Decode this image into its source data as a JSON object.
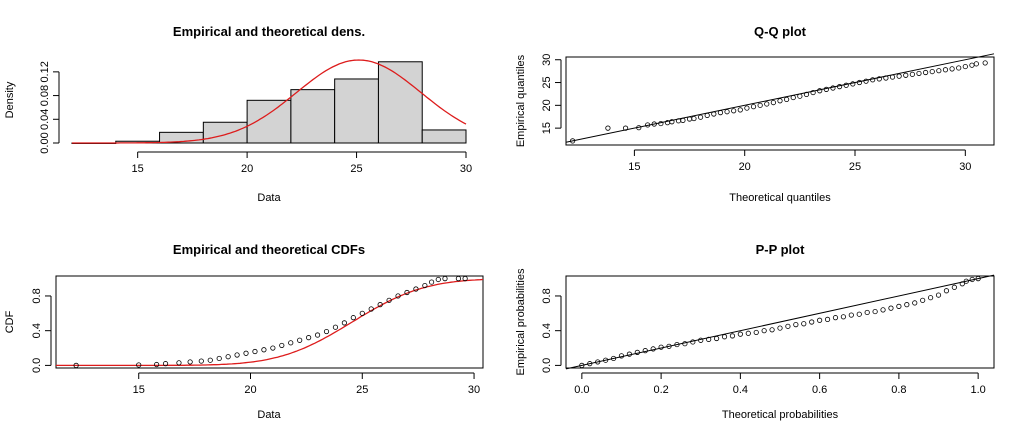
{
  "colors": {
    "bar_fill": "#d3d3d3",
    "bar_stroke": "#000000",
    "curve": "#dd1c1c",
    "axis": "#000000",
    "background": "#ffffff"
  },
  "chart_data": [
    {
      "id": "density",
      "type": "histogram",
      "title": "Empirical and theoretical dens.",
      "xlabel": "Data",
      "ylabel": "Density",
      "xlim": [
        12,
        30
      ],
      "ylim": [
        0,
        0.14
      ],
      "xticks": [
        15,
        20,
        25,
        30
      ],
      "yticks": [
        0.0,
        0.04,
        0.08,
        0.12
      ],
      "ytick_labels": [
        "0.00",
        "0.04",
        "0.08",
        "0.12"
      ],
      "bins": [
        {
          "from": 12,
          "to": 14,
          "density": 0.0
        },
        {
          "from": 14,
          "to": 16,
          "density": 0.003
        },
        {
          "from": 16,
          "to": 18,
          "density": 0.018
        },
        {
          "from": 18,
          "to": 20,
          "density": 0.035
        },
        {
          "from": 20,
          "to": 22,
          "density": 0.072
        },
        {
          "from": 22,
          "to": 24,
          "density": 0.09
        },
        {
          "from": 24,
          "to": 26,
          "density": 0.108
        },
        {
          "from": 26,
          "to": 28,
          "density": 0.137
        },
        {
          "from": 28,
          "to": 30,
          "density": 0.022
        }
      ],
      "theoretical": {
        "distribution": "normal",
        "mean": 25.1,
        "sd": 2.85,
        "peak_density": 0.14
      }
    },
    {
      "id": "qq",
      "type": "scatter",
      "title": "Q-Q plot",
      "xlabel": "Theoretical quantiles",
      "ylabel": "Empirical quantiles",
      "xlim": [
        11.9,
        31.3
      ],
      "ylim": [
        11.3,
        30.6
      ],
      "xticks": [
        15,
        20,
        25,
        30
      ],
      "yticks": [
        15,
        20,
        25,
        30
      ],
      "reference_line": [
        [
          11.9,
          11.9
        ],
        [
          31.3,
          31.3
        ]
      ],
      "points": [
        [
          12.2,
          12.2
        ],
        [
          13.8,
          15
        ],
        [
          14.6,
          15
        ],
        [
          15.2,
          15.1
        ],
        [
          15.6,
          15.7
        ],
        [
          15.9,
          15.9
        ],
        [
          16.2,
          16
        ],
        [
          16.5,
          16.2
        ],
        [
          16.7,
          16.4
        ],
        [
          17,
          16.6
        ],
        [
          17.2,
          16.7
        ],
        [
          17.5,
          17
        ],
        [
          17.7,
          17.1
        ],
        [
          18,
          17.4
        ],
        [
          18.3,
          17.8
        ],
        [
          18.6,
          18.1
        ],
        [
          18.9,
          18.4
        ],
        [
          19.2,
          18.6
        ],
        [
          19.5,
          18.8
        ],
        [
          19.8,
          19
        ],
        [
          20.1,
          19.4
        ],
        [
          20.4,
          19.7
        ],
        [
          20.7,
          20
        ],
        [
          21,
          20.3
        ],
        [
          21.3,
          20.6
        ],
        [
          21.6,
          21
        ],
        [
          21.9,
          21.3
        ],
        [
          22.2,
          21.7
        ],
        [
          22.5,
          22
        ],
        [
          22.8,
          22.4
        ],
        [
          23.1,
          22.8
        ],
        [
          23.4,
          23.2
        ],
        [
          23.7,
          23.5
        ],
        [
          24,
          23.8
        ],
        [
          24.3,
          24.1
        ],
        [
          24.6,
          24.4
        ],
        [
          24.9,
          24.7
        ],
        [
          25.2,
          25
        ],
        [
          25.5,
          25.3
        ],
        [
          25.8,
          25.6
        ],
        [
          26.1,
          25.8
        ],
        [
          26.4,
          26
        ],
        [
          26.7,
          26.2
        ],
        [
          27,
          26.4
        ],
        [
          27.3,
          26.6
        ],
        [
          27.6,
          26.8
        ],
        [
          27.9,
          27
        ],
        [
          28.2,
          27.2
        ],
        [
          28.5,
          27.4
        ],
        [
          28.8,
          27.6
        ],
        [
          29.1,
          27.8
        ],
        [
          29.4,
          28
        ],
        [
          29.7,
          28.2
        ],
        [
          30,
          28.5
        ],
        [
          30.3,
          28.8
        ],
        [
          30.5,
          29.1
        ],
        [
          30.9,
          29.3
        ]
      ]
    },
    {
      "id": "cdf",
      "type": "scatter",
      "title": "Empirical and theoretical CDFs",
      "xlabel": "Data",
      "ylabel": "CDF",
      "xlim": [
        11.3,
        30.4
      ],
      "ylim": [
        -0.03,
        1.03
      ],
      "xticks": [
        15,
        20,
        25,
        30
      ],
      "yticks": [
        0.0,
        0.4,
        0.8
      ],
      "ytick_labels": [
        "0.0",
        "0.4",
        "0.8"
      ],
      "theoretical": {
        "distribution": "normal",
        "mean": 24.55,
        "sd": 2.55
      },
      "points": [
        [
          12.2,
          0.0
        ],
        [
          15,
          0.005
        ],
        [
          15.8,
          0.01
        ],
        [
          16.2,
          0.02
        ],
        [
          16.8,
          0.03
        ],
        [
          17.3,
          0.04
        ],
        [
          17.8,
          0.05
        ],
        [
          18.2,
          0.06
        ],
        [
          18.6,
          0.08
        ],
        [
          19,
          0.1
        ],
        [
          19.4,
          0.12
        ],
        [
          19.8,
          0.14
        ],
        [
          20.2,
          0.16
        ],
        [
          20.6,
          0.18
        ],
        [
          21,
          0.2
        ],
        [
          21.4,
          0.23
        ],
        [
          21.8,
          0.26
        ],
        [
          22.2,
          0.29
        ],
        [
          22.6,
          0.32
        ],
        [
          23,
          0.35
        ],
        [
          23.4,
          0.39
        ],
        [
          23.8,
          0.44
        ],
        [
          24.2,
          0.49
        ],
        [
          24.6,
          0.55
        ],
        [
          25,
          0.6
        ],
        [
          25.4,
          0.65
        ],
        [
          25.8,
          0.7
        ],
        [
          26.2,
          0.75
        ],
        [
          26.6,
          0.8
        ],
        [
          27,
          0.84
        ],
        [
          27.4,
          0.88
        ],
        [
          27.8,
          0.92
        ],
        [
          28.1,
          0.96
        ],
        [
          28.4,
          0.99
        ],
        [
          28.7,
          1.0
        ],
        [
          29.3,
          1.0
        ],
        [
          29.6,
          1.0
        ]
      ]
    },
    {
      "id": "pp",
      "type": "scatter",
      "title": "P-P plot",
      "xlabel": "Theoretical probabilities",
      "ylabel": "Empirical probabilities",
      "xlim": [
        -0.04,
        1.04
      ],
      "ylim": [
        -0.03,
        1.03
      ],
      "xticks": [
        0.0,
        0.2,
        0.4,
        0.6,
        0.8,
        1.0
      ],
      "xtick_labels": [
        "0.0",
        "0.2",
        "0.4",
        "0.6",
        "0.8",
        "1.0"
      ],
      "yticks": [
        0.0,
        0.4,
        0.8
      ],
      "ytick_labels": [
        "0.0",
        "0.4",
        "0.8"
      ],
      "reference_line": [
        [
          -0.04,
          -0.04
        ],
        [
          1.04,
          1.04
        ]
      ],
      "points": [
        [
          0.0,
          0.0
        ],
        [
          0.02,
          0.02
        ],
        [
          0.04,
          0.04
        ],
        [
          0.06,
          0.06
        ],
        [
          0.08,
          0.08
        ],
        [
          0.1,
          0.11
        ],
        [
          0.12,
          0.13
        ],
        [
          0.14,
          0.15
        ],
        [
          0.16,
          0.17
        ],
        [
          0.18,
          0.19
        ],
        [
          0.2,
          0.21
        ],
        [
          0.22,
          0.22
        ],
        [
          0.24,
          0.24
        ],
        [
          0.26,
          0.25
        ],
        [
          0.28,
          0.27
        ],
        [
          0.3,
          0.29
        ],
        [
          0.32,
          0.3
        ],
        [
          0.34,
          0.31
        ],
        [
          0.36,
          0.33
        ],
        [
          0.38,
          0.34
        ],
        [
          0.4,
          0.36
        ],
        [
          0.42,
          0.37
        ],
        [
          0.44,
          0.38
        ],
        [
          0.46,
          0.4
        ],
        [
          0.48,
          0.41
        ],
        [
          0.5,
          0.43
        ],
        [
          0.52,
          0.45
        ],
        [
          0.54,
          0.47
        ],
        [
          0.56,
          0.48
        ],
        [
          0.58,
          0.5
        ],
        [
          0.6,
          0.52
        ],
        [
          0.62,
          0.53
        ],
        [
          0.64,
          0.55
        ],
        [
          0.66,
          0.56
        ],
        [
          0.68,
          0.58
        ],
        [
          0.7,
          0.59
        ],
        [
          0.72,
          0.61
        ],
        [
          0.74,
          0.62
        ],
        [
          0.76,
          0.64
        ],
        [
          0.78,
          0.66
        ],
        [
          0.8,
          0.68
        ],
        [
          0.82,
          0.7
        ],
        [
          0.84,
          0.72
        ],
        [
          0.86,
          0.75
        ],
        [
          0.88,
          0.78
        ],
        [
          0.9,
          0.81
        ],
        [
          0.92,
          0.86
        ],
        [
          0.94,
          0.9
        ],
        [
          0.96,
          0.94
        ],
        [
          0.97,
          0.97
        ],
        [
          0.985,
          0.99
        ],
        [
          1.0,
          1.0
        ]
      ]
    }
  ]
}
